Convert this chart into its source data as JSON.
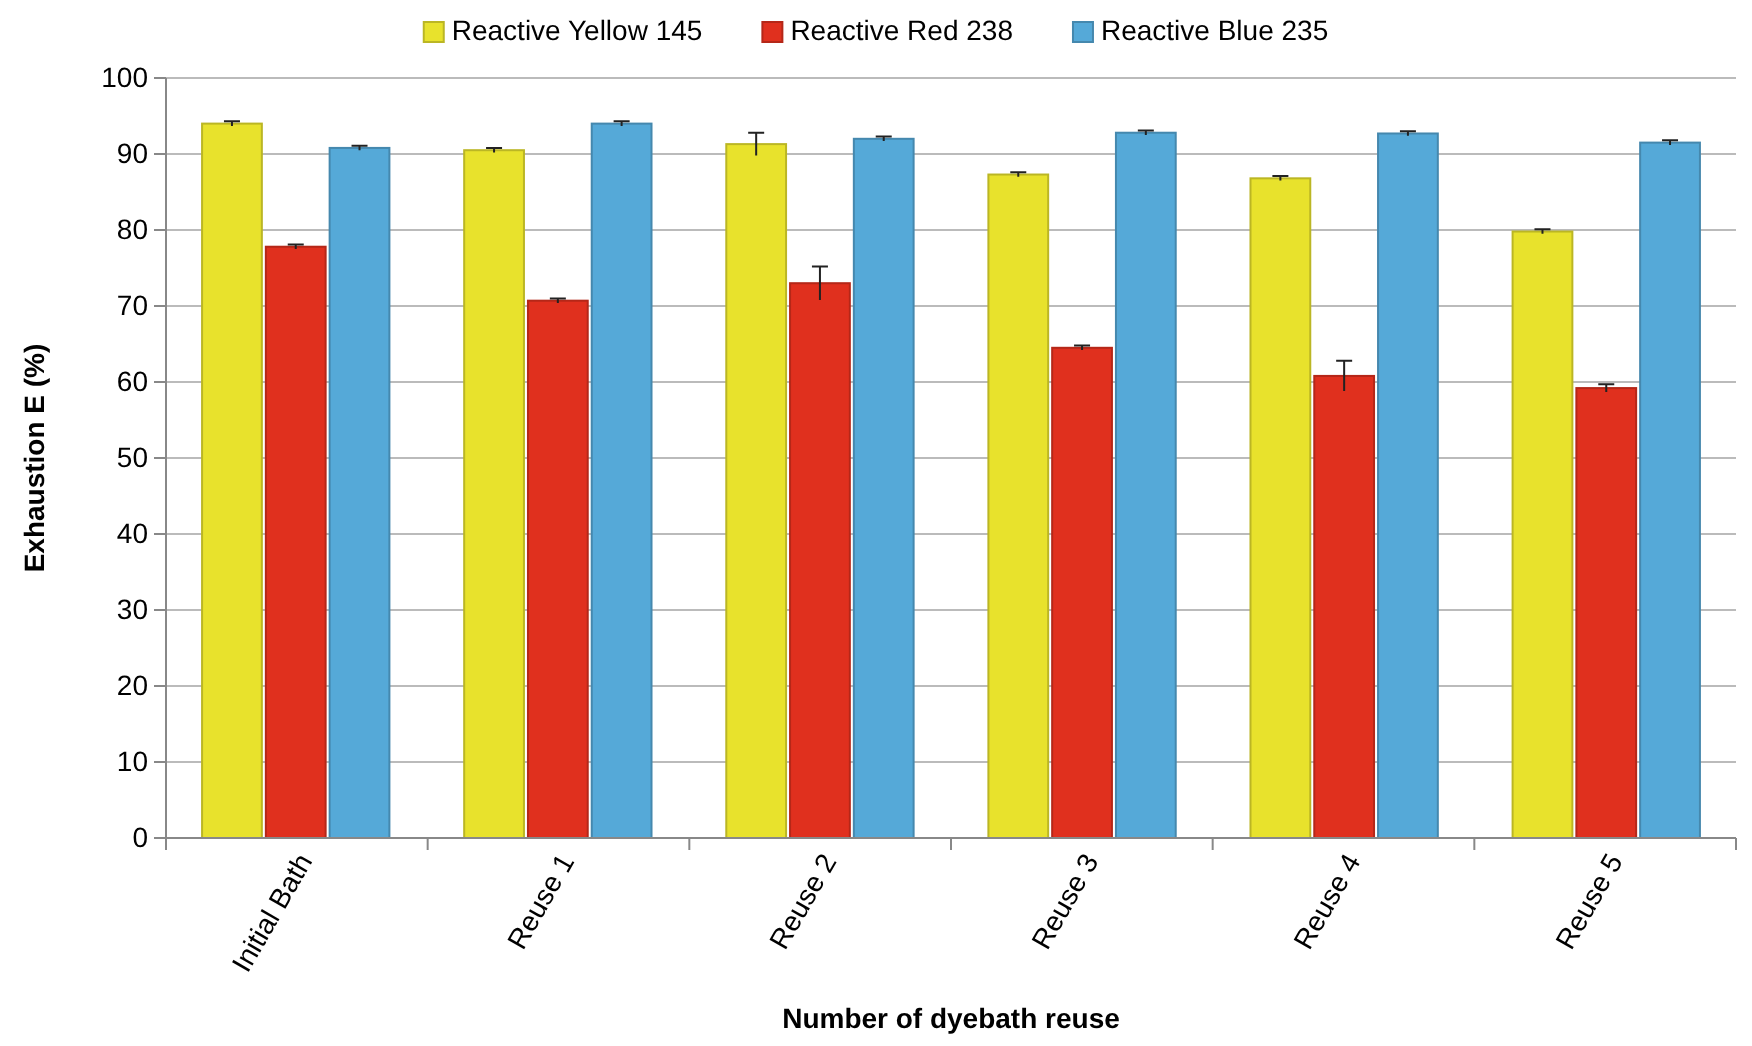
{
  "chart_data": {
    "type": "bar",
    "xlabel": "Number of dyebath reuse",
    "ylabel": "Exhaustion E (%)",
    "categories": [
      "Initial Bath",
      "Reuse 1",
      "Reuse 2",
      "Reuse 3",
      "Reuse 4",
      "Reuse 5"
    ],
    "series": [
      {
        "name": "Reactive Yellow 145",
        "color": "#e8e22c",
        "values": [
          94,
          90.5,
          91.3,
          87.3,
          86.8,
          79.8
        ],
        "errors": [
          0.3,
          0.3,
          1.5,
          0.3,
          0.3,
          0.3
        ]
      },
      {
        "name": "Reactive Red 238",
        "color": "#e0301e",
        "values": [
          77.8,
          70.7,
          73,
          64.5,
          60.8,
          59.2
        ],
        "errors": [
          0.3,
          0.3,
          2.2,
          0.3,
          2,
          0.5
        ]
      },
      {
        "name": "Reactive Blue 235",
        "color": "#55a9d8",
        "values": [
          90.8,
          94,
          92,
          92.8,
          92.7,
          91.5
        ],
        "errors": [
          0.3,
          0.3,
          0.3,
          0.3,
          0.3,
          0.3
        ]
      }
    ],
    "ylim": [
      0,
      100
    ],
    "yticks": [
      0,
      10,
      20,
      30,
      40,
      50,
      60,
      70,
      80,
      90,
      100
    ],
    "grid": "y",
    "legend": "top"
  }
}
